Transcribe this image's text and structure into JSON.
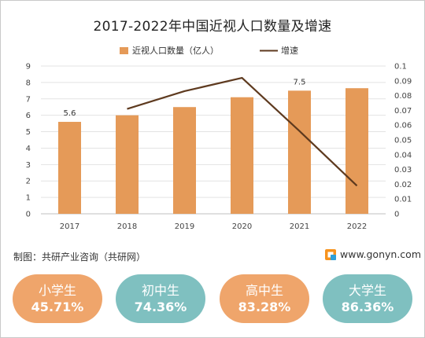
{
  "chart_data": {
    "type": "bar+line",
    "title": "2017-2022年中国近视人口数量及增速",
    "categories": [
      "2017",
      "2018",
      "2019",
      "2020",
      "2021",
      "2022"
    ],
    "series": [
      {
        "name": "近视人口数量（亿人）",
        "type": "bar",
        "axis": "left",
        "color": "#e59a58",
        "values": [
          5.6,
          6.0,
          6.5,
          7.1,
          7.5,
          7.65
        ]
      },
      {
        "name": "增速",
        "type": "line",
        "axis": "right",
        "color": "#5e3a1f",
        "values": [
          null,
          0.071,
          0.083,
          0.092,
          0.056,
          0.019
        ]
      }
    ],
    "data_labels": [
      {
        "index": 0,
        "text": "5.6"
      },
      {
        "index": 4,
        "text": "7.5"
      }
    ],
    "y_left": {
      "min": 0,
      "max": 9,
      "step": 1,
      "ticks": [
        "0",
        "1",
        "2",
        "3",
        "4",
        "5",
        "6",
        "7",
        "8",
        "9"
      ]
    },
    "y_right": {
      "min": 0,
      "max": 0.1,
      "step": 0.01,
      "ticks": [
        "0",
        "0.01",
        "0.02",
        "0.03",
        "0.04",
        "0.05",
        "0.06",
        "0.07",
        "0.08",
        "0.09",
        "0.1"
      ]
    },
    "grid": true,
    "legend_position": "top"
  },
  "source": "制图：共研产业咨询（共研网）",
  "brand": {
    "text": "www.gonyn.com",
    "colors": [
      "#f7931e",
      "#2e9fd8"
    ]
  },
  "pills": [
    {
      "label": "小学生",
      "value": "45.71%",
      "color": "#efa56b"
    },
    {
      "label": "初中生",
      "value": "74.36%",
      "color": "#7fc0c0"
    },
    {
      "label": "高中生",
      "value": "83.28%",
      "color": "#efa56b"
    },
    {
      "label": "大学生",
      "value": "86.36%",
      "color": "#7fc0c0"
    }
  ]
}
